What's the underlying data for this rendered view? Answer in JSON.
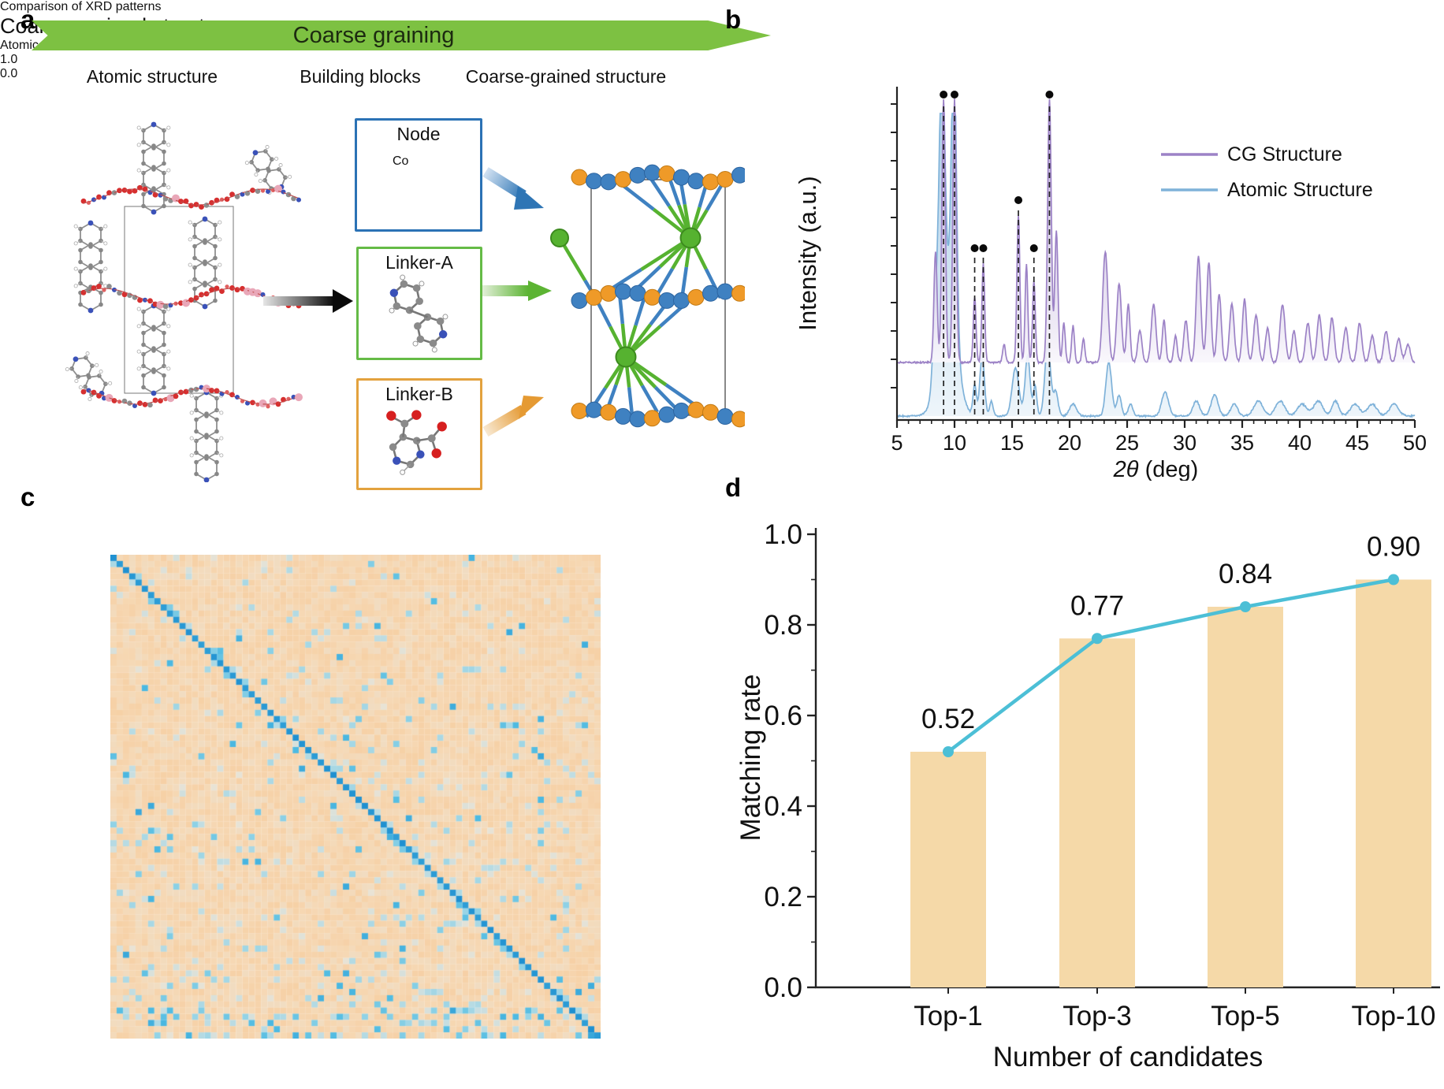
{
  "panel_labels": {
    "a": "a",
    "b": "b",
    "c": "c",
    "d": "d"
  },
  "panel_a": {
    "banner": "Coarse graining",
    "columns": [
      "Atomic structure",
      "Building blocks",
      "Coarse-grained structure"
    ],
    "blocks": [
      {
        "title": "Node",
        "atom": "Co",
        "border_color": "#2b72b5"
      },
      {
        "title": "Linker-A",
        "border_color": "#65bb46"
      },
      {
        "title": "Linker-B",
        "border_color": "#e3a23e"
      }
    ],
    "colors": {
      "banner_green": "#7dc142",
      "sphere_blue": "#3f81c1",
      "sphere_orange": "#ef9a28",
      "sphere_green": "#56b230",
      "atom_red": "#d62f2f",
      "atom_blue": "#3a51b8",
      "atom_gray": "#8d8d8d",
      "atom_pink": "#e9a7b8",
      "node_fill": "#f0b2a0"
    }
  },
  "chart_data": [
    {
      "type": "line",
      "panel": "b",
      "title": "Comparison of XRD patterns",
      "xlabel": "2θ (deg)",
      "ylabel": "Intensity (a.u.)",
      "x_range": [
        5,
        50
      ],
      "x_ticks": [
        5,
        10,
        15,
        20,
        25,
        30,
        35,
        40,
        45,
        50
      ],
      "legend_position": "upper right",
      "series": [
        {
          "name": "CG Structure",
          "color": "#9c82c6",
          "fill_top": "#b5a3d3",
          "peaks": [
            [
              8.35,
              0.42,
              0.14
            ],
            [
              9.05,
              1.0,
              0.15
            ],
            [
              10.0,
              1.0,
              0.15
            ],
            [
              11.75,
              0.25,
              0.12
            ],
            [
              12.5,
              0.38,
              0.12
            ],
            [
              14.3,
              0.07,
              0.12
            ],
            [
              15.55,
              0.56,
              0.13
            ],
            [
              16.25,
              0.37,
              0.12
            ],
            [
              16.9,
              0.31,
              0.12
            ],
            [
              18.25,
              1.0,
              0.16
            ],
            [
              18.85,
              0.5,
              0.14
            ],
            [
              19.5,
              0.15,
              0.12
            ],
            [
              20.3,
              0.14,
              0.12
            ],
            [
              21.2,
              0.09,
              0.12
            ],
            [
              23.1,
              0.42,
              0.22
            ],
            [
              24.3,
              0.3,
              0.2
            ],
            [
              25.1,
              0.22,
              0.15
            ],
            [
              26.1,
              0.12,
              0.18
            ],
            [
              27.3,
              0.22,
              0.2
            ],
            [
              28.2,
              0.16,
              0.15
            ],
            [
              29.2,
              0.1,
              0.15
            ],
            [
              30.1,
              0.16,
              0.18
            ],
            [
              31.2,
              0.4,
              0.2
            ],
            [
              32.1,
              0.38,
              0.18
            ],
            [
              33.0,
              0.26,
              0.18
            ],
            [
              34.1,
              0.22,
              0.2
            ],
            [
              35.2,
              0.24,
              0.18
            ],
            [
              36.2,
              0.18,
              0.2
            ],
            [
              37.2,
              0.13,
              0.18
            ],
            [
              38.5,
              0.22,
              0.22
            ],
            [
              39.5,
              0.12,
              0.18
            ],
            [
              40.7,
              0.15,
              0.2
            ],
            [
              41.7,
              0.18,
              0.2
            ],
            [
              42.8,
              0.17,
              0.2
            ],
            [
              44.0,
              0.13,
              0.2
            ],
            [
              45.2,
              0.15,
              0.2
            ],
            [
              46.3,
              0.1,
              0.2
            ],
            [
              47.5,
              0.12,
              0.2
            ],
            [
              48.6,
              0.09,
              0.2
            ],
            [
              49.4,
              0.07,
              0.2
            ]
          ]
        },
        {
          "name": "Atomic Structure",
          "color": "#7fb2d9",
          "fill_top": "#9fc6e2",
          "peaks": [
            [
              9.4,
              0.42,
              0.75
            ],
            [
              8.3,
              0.2,
              0.2
            ],
            [
              8.9,
              0.88,
              0.25
            ],
            [
              9.95,
              0.92,
              0.22
            ],
            [
              11.75,
              0.1,
              0.15
            ],
            [
              12.4,
              0.2,
              0.2
            ],
            [
              13.2,
              0.05,
              0.15
            ],
            [
              15.3,
              0.16,
              0.3
            ],
            [
              16.35,
              0.2,
              0.22
            ],
            [
              17.0,
              0.1,
              0.15
            ],
            [
              18.1,
              0.24,
              0.25
            ],
            [
              18.8,
              0.08,
              0.2
            ],
            [
              20.3,
              0.04,
              0.3
            ],
            [
              23.4,
              0.18,
              0.25
            ],
            [
              24.3,
              0.07,
              0.2
            ],
            [
              25.3,
              0.04,
              0.2
            ],
            [
              28.3,
              0.08,
              0.3
            ],
            [
              31.0,
              0.05,
              0.3
            ],
            [
              32.6,
              0.07,
              0.3
            ],
            [
              34.3,
              0.04,
              0.3
            ],
            [
              36.4,
              0.05,
              0.4
            ],
            [
              38.3,
              0.05,
              0.4
            ],
            [
              40.2,
              0.04,
              0.4
            ],
            [
              41.6,
              0.05,
              0.4
            ],
            [
              43.1,
              0.05,
              0.3
            ],
            [
              44.8,
              0.04,
              0.4
            ],
            [
              46.3,
              0.04,
              0.4
            ],
            [
              48.2,
              0.04,
              0.4
            ]
          ]
        }
      ],
      "marked_peaks": [
        {
          "two_theta": 9.05,
          "dot_level": "top"
        },
        {
          "two_theta": 10.0,
          "dot_level": "top"
        },
        {
          "two_theta": 11.75,
          "dot_level": "mid"
        },
        {
          "two_theta": 12.5,
          "dot_level": "mid"
        },
        {
          "two_theta": 15.55,
          "dot_level": "high"
        },
        {
          "two_theta": 16.9,
          "dot_level": "mid"
        },
        {
          "two_theta": 18.25,
          "dot_level": "top"
        }
      ]
    },
    {
      "type": "heatmap",
      "panel": "c",
      "title": "Coarse-grained structure",
      "ylabel": "Atomic structure",
      "grid": 78,
      "value_range": [
        0,
        1
      ],
      "colorbar_labels": [
        "1.0",
        "0.0"
      ],
      "pattern": "diagonal cells ~1.0 (blue); background ~0.1 (peach) with scattered moderate values; speckle density increases toward bottom rows",
      "colormap_stops": [
        [
          0,
          "#f7c794"
        ],
        [
          0.18,
          "#f6d8b4"
        ],
        [
          0.3,
          "#e9e3d5"
        ],
        [
          0.42,
          "#c2dde2"
        ],
        [
          0.55,
          "#93d3e6"
        ],
        [
          0.72,
          "#4fbbe2"
        ],
        [
          1,
          "#1e8fd0"
        ]
      ]
    },
    {
      "type": "bar",
      "panel": "d",
      "categories": [
        "Top-1",
        "Top-3",
        "Top-5",
        "Top-10"
      ],
      "values": [
        0.52,
        0.77,
        0.84,
        0.9
      ],
      "value_labels": [
        "0.52",
        "0.77",
        "0.84",
        "0.90"
      ],
      "xlabel": "Number of candidates",
      "ylabel": "Matching rate",
      "ylim": [
        0,
        1
      ],
      "yticks": [
        "0.0",
        "0.2",
        "0.4",
        "0.6",
        "0.8",
        "1.0"
      ],
      "bar_color": "#f5d9a8",
      "line_color": "#4cbfd6",
      "overlay": "line with circular markers connecting bar tops"
    }
  ]
}
